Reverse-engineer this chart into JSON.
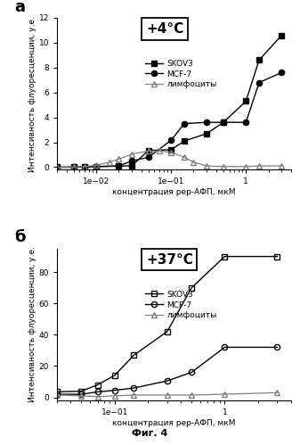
{
  "panel_a": {
    "title": "+4°C",
    "xlabel": "концентрация рер-АФП, мкМ",
    "ylabel": "Интенсивность флуоресценции, у.е.",
    "ylim": [
      -0.2,
      12
    ],
    "yticks": [
      0,
      2,
      4,
      6,
      8,
      10,
      12
    ],
    "skov3_x": [
      0.003,
      0.005,
      0.007,
      0.01,
      0.02,
      0.03,
      0.05,
      0.1,
      0.15,
      0.3,
      0.5,
      1.0,
      1.5,
      3.0
    ],
    "skov3_y": [
      0.0,
      0.0,
      0.02,
      0.05,
      0.08,
      0.12,
      1.35,
      1.4,
      2.1,
      2.7,
      3.6,
      5.3,
      8.6,
      10.6
    ],
    "mcf7_x": [
      0.003,
      0.005,
      0.007,
      0.01,
      0.02,
      0.03,
      0.05,
      0.1,
      0.15,
      0.3,
      0.5,
      1.0,
      1.5,
      3.0
    ],
    "mcf7_y": [
      0.0,
      0.0,
      0.02,
      0.05,
      0.1,
      0.5,
      0.8,
      2.15,
      3.5,
      3.6,
      3.6,
      3.6,
      6.8,
      7.6
    ],
    "lymph_x": [
      0.003,
      0.005,
      0.007,
      0.01,
      0.015,
      0.02,
      0.03,
      0.05,
      0.07,
      0.1,
      0.15,
      0.2,
      0.3,
      0.5,
      1.0,
      1.5,
      3.0
    ],
    "lymph_y": [
      0.0,
      0.02,
      0.05,
      0.15,
      0.4,
      0.65,
      1.05,
      1.3,
      1.3,
      1.2,
      0.8,
      0.4,
      0.1,
      0.05,
      0.05,
      0.1,
      0.1
    ],
    "xlim": [
      0.003,
      4.0
    ]
  },
  "panel_b": {
    "title": "+37°C",
    "xlabel": "концентрация рер-АФП, мкМ",
    "ylabel": "Интенсивность флуоресценции, у.е.",
    "ylim": [
      -2,
      95
    ],
    "yticks": [
      0,
      20,
      40,
      60,
      80
    ],
    "skov3_x": [
      0.03,
      0.05,
      0.07,
      0.1,
      0.15,
      0.3,
      0.5,
      1.0,
      3.0
    ],
    "skov3_y": [
      3.5,
      4.0,
      8.0,
      14.0,
      27.0,
      42.0,
      70.0,
      90.0,
      90.0
    ],
    "mcf7_x": [
      0.03,
      0.05,
      0.07,
      0.1,
      0.15,
      0.3,
      0.5,
      1.0,
      3.0
    ],
    "mcf7_y": [
      2.0,
      2.0,
      3.5,
      4.5,
      6.0,
      10.5,
      16.0,
      32.0,
      32.0
    ],
    "lymph_x": [
      0.03,
      0.05,
      0.07,
      0.1,
      0.15,
      0.3,
      0.5,
      1.0,
      3.0
    ],
    "lymph_y": [
      1.5,
      1.0,
      0.5,
      1.0,
      1.5,
      1.5,
      1.5,
      2.0,
      3.0
    ],
    "xlim": [
      0.03,
      4.0
    ]
  },
  "legend_labels": [
    "SKOV3",
    "MCF-7",
    "лимфоциты"
  ],
  "fig_label": "Фиг. 4",
  "panel_labels": [
    "a",
    "б"
  ]
}
